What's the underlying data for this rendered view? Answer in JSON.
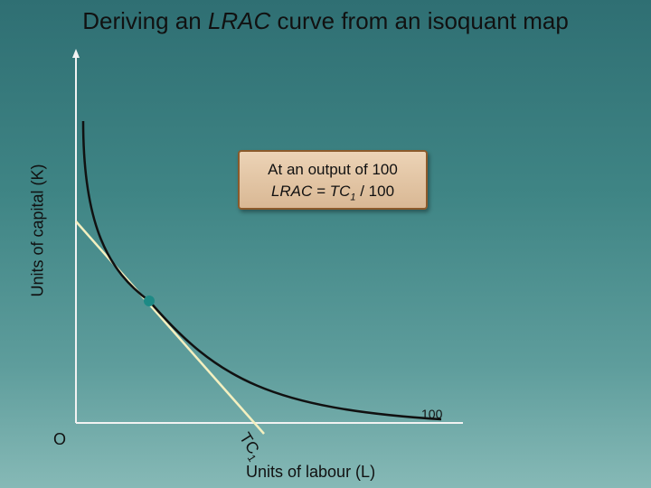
{
  "title": {
    "prefix": "Deriving an ",
    "emph": "LRAC",
    "suffix": " curve from an isoquant map"
  },
  "axes": {
    "y_label": "Units of capital (K)",
    "x_label": "Units of labour (L)",
    "origin_label": "O"
  },
  "isoquant": {
    "label": "100"
  },
  "isocost": {
    "label_main": "TC",
    "label_sub": "1"
  },
  "callout": {
    "line1": "At an output of 100",
    "line2_prefix": "LRAC",
    "line2_mid": " = TC",
    "line2_sub": "1",
    "line2_suffix": " / 100"
  },
  "colors": {
    "isoquant": "#111111",
    "isocost": "#f4f0c0",
    "point": "#1d8a85",
    "axes": "#f2f2f2",
    "callout_border": "#8b5a2b"
  }
}
